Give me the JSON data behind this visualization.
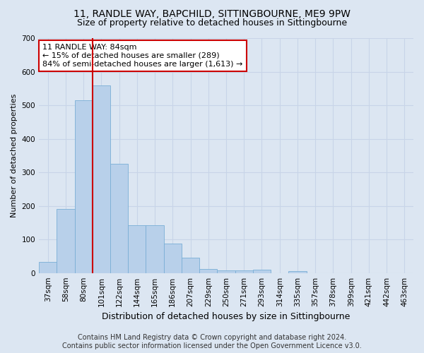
{
  "title1": "11, RANDLE WAY, BAPCHILD, SITTINGBOURNE, ME9 9PW",
  "title2": "Size of property relative to detached houses in Sittingbourne",
  "xlabel": "Distribution of detached houses by size in Sittingbourne",
  "ylabel": "Number of detached properties",
  "categories": [
    "37sqm",
    "58sqm",
    "80sqm",
    "101sqm",
    "122sqm",
    "144sqm",
    "165sqm",
    "186sqm",
    "207sqm",
    "229sqm",
    "250sqm",
    "271sqm",
    "293sqm",
    "314sqm",
    "335sqm",
    "357sqm",
    "378sqm",
    "399sqm",
    "421sqm",
    "442sqm",
    "463sqm"
  ],
  "values": [
    33,
    190,
    515,
    560,
    325,
    143,
    143,
    88,
    46,
    13,
    7,
    7,
    10,
    0,
    5,
    0,
    0,
    0,
    0,
    0,
    0
  ],
  "bar_color": "#b8d0ea",
  "bar_edge_color": "#7aaed6",
  "vline_position": 2.5,
  "vline_color": "#cc0000",
  "annotation_text": "11 RANDLE WAY: 84sqm\n← 15% of detached houses are smaller (289)\n84% of semi-detached houses are larger (1,613) →",
  "annotation_box_color": "#ffffff",
  "annotation_box_edge": "#cc0000",
  "ylim": [
    0,
    700
  ],
  "yticks": [
    0,
    100,
    200,
    300,
    400,
    500,
    600,
    700
  ],
  "grid_color": "#c8d4e8",
  "background_color": "#dce6f2",
  "footer": "Contains HM Land Registry data © Crown copyright and database right 2024.\nContains public sector information licensed under the Open Government Licence v3.0.",
  "title1_fontsize": 10,
  "title2_fontsize": 9,
  "xlabel_fontsize": 9,
  "ylabel_fontsize": 8,
  "tick_fontsize": 7.5,
  "annotation_fontsize": 8,
  "footer_fontsize": 7
}
